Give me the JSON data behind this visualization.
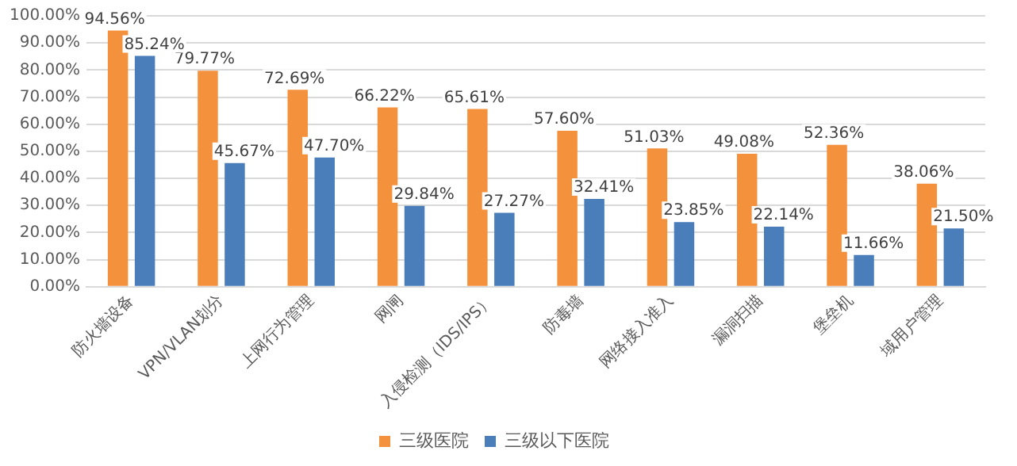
{
  "chart_data": {
    "type": "bar",
    "categories": [
      "防火墙设备",
      "VPN/VLAN划分",
      "上网行为管理",
      "网闸",
      "入侵检测（IDS/IPS）",
      "防毒墙",
      "网络接入准入",
      "漏洞扫描",
      "堡垒机",
      "域用户管理"
    ],
    "series": [
      {
        "name": "三级医院",
        "color": "#f4913c",
        "values": [
          94.56,
          79.77,
          72.69,
          66.22,
          65.61,
          57.6,
          51.03,
          49.08,
          52.36,
          38.06
        ],
        "value_labels": [
          "94.56%",
          "79.77%",
          "72.69%",
          "66.22%",
          "65.61%",
          "57.60%",
          "51.03%",
          "49.08%",
          "52.36%",
          "38.06%"
        ]
      },
      {
        "name": "三级以下医院",
        "color": "#4a7ebb",
        "values": [
          85.24,
          45.67,
          47.7,
          29.84,
          27.27,
          32.41,
          23.85,
          22.14,
          11.66,
          21.5
        ],
        "value_labels": [
          "85.24%",
          "45.67%",
          "47.70%",
          "29.84%",
          "27.27%",
          "32.41%",
          "23.85%",
          "22.14%",
          "11.66%",
          "21.50%"
        ]
      }
    ],
    "ylim": [
      0,
      100
    ],
    "yticks": [
      {
        "value": 0,
        "label": "0.00%"
      },
      {
        "value": 10,
        "label": "10.00%"
      },
      {
        "value": 20,
        "label": "20.00%"
      },
      {
        "value": 30,
        "label": "30.00%"
      },
      {
        "value": 40,
        "label": "40.00%"
      },
      {
        "value": 50,
        "label": "50.00%"
      },
      {
        "value": 60,
        "label": "60.00%"
      },
      {
        "value": 70,
        "label": "70.00%"
      },
      {
        "value": 80,
        "label": "80.00%"
      },
      {
        "value": 90,
        "label": "90.00%"
      },
      {
        "value": 100,
        "label": "100.00%"
      }
    ],
    "grid": "y",
    "legend": "bottom"
  }
}
